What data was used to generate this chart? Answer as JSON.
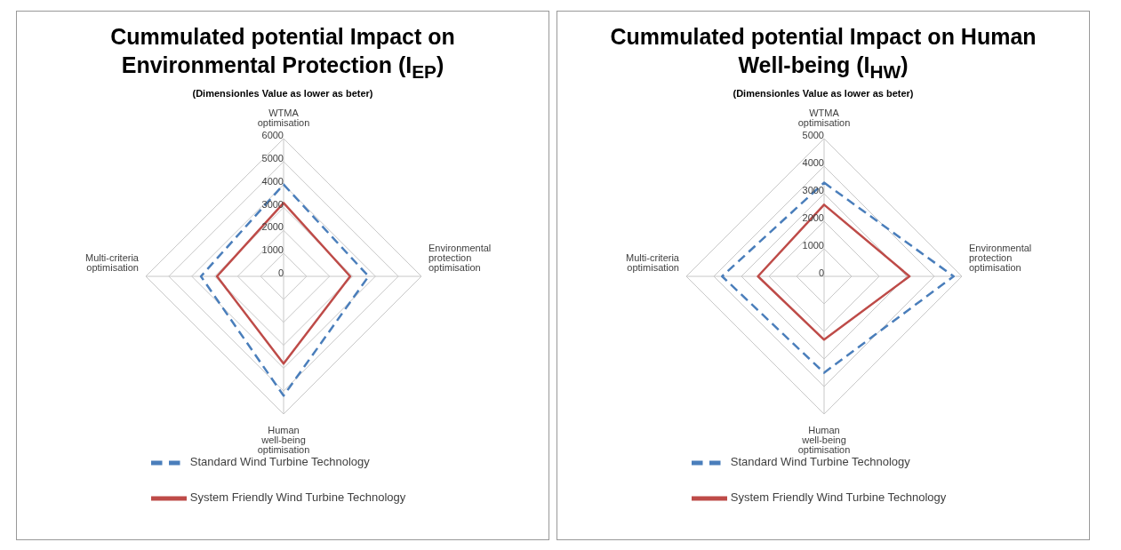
{
  "chart_data": [
    {
      "type": "radar",
      "title": "Cummulated potential Impact on Environmental Protection (I$_{EP}$)",
      "subtitle": "(Dimensionles Value as lower as beter)",
      "categories": [
        "WTMA optimisation",
        "Environmental protection optimisation",
        "Human well-being optimisation",
        "Multi-criteria optimisation"
      ],
      "ylim": [
        0,
        6000
      ],
      "yticks": [
        0,
        1000,
        2000,
        3000,
        4000,
        5000,
        6000
      ],
      "grid": true,
      "legend": "bottom",
      "marker": "none",
      "series": [
        {
          "name": "Standard Wind Turbine Technology",
          "color": "#4a7ebb",
          "line_style": "dashed",
          "values": [
            4000,
            3700,
            5200,
            3600
          ]
        },
        {
          "name": "System Friendly Wind Turbine Technology",
          "color": "#be4b48",
          "line_style": "solid",
          "values": [
            3200,
            2900,
            3800,
            2900
          ]
        }
      ]
    },
    {
      "type": "radar",
      "title": "Cummulated potential Impact on Human Well-being (I$_{HW}$)",
      "subtitle": "(Dimensionles Value as lower as beter)",
      "categories": [
        "WTMA optimisation",
        "Environmental protection optimisation",
        "Human well-being optimisation",
        "Multi-criteria optimisation"
      ],
      "ylim": [
        0,
        5000
      ],
      "yticks": [
        0,
        1000,
        2000,
        3000,
        4000,
        5000
      ],
      "grid": true,
      "legend": "bottom",
      "marker": "none",
      "series": [
        {
          "name": "Standard Wind Turbine Technology",
          "color": "#4a7ebb",
          "line_style": "dashed",
          "values": [
            3400,
            4700,
            3500,
            3700
          ]
        },
        {
          "name": "System Friendly Wind Turbine Technology",
          "color": "#be4b48",
          "line_style": "solid",
          "values": [
            2600,
            3100,
            2300,
            2400
          ]
        }
      ]
    }
  ]
}
